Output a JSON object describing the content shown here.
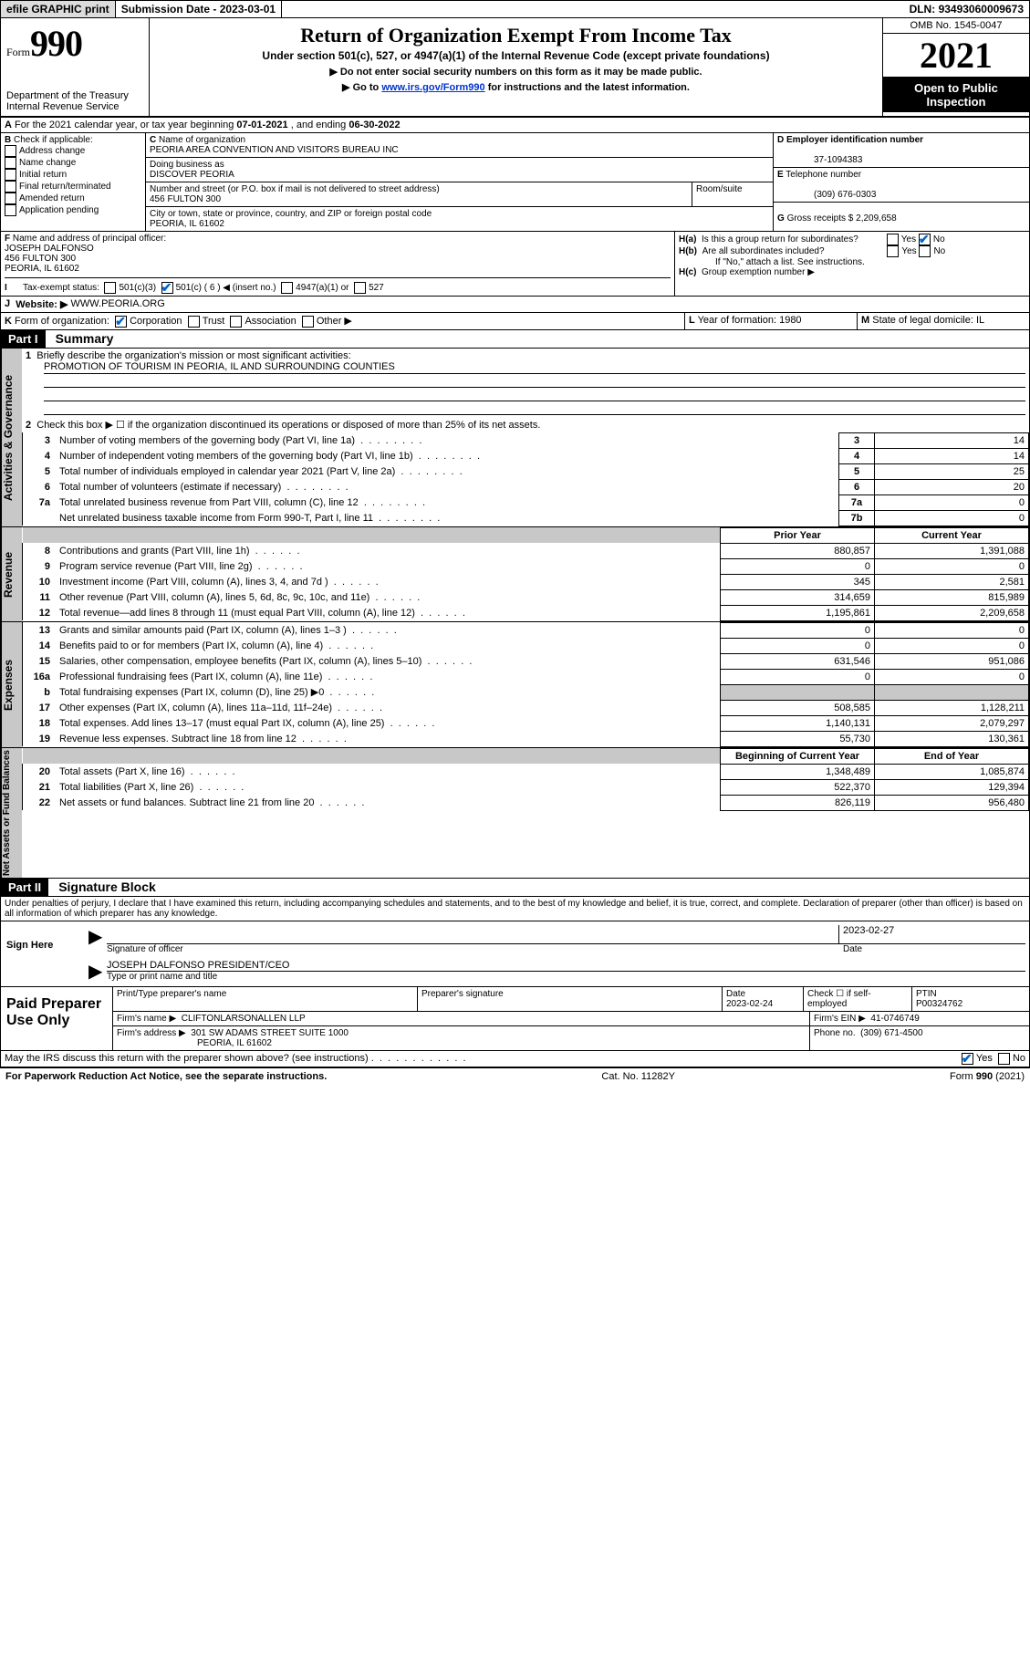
{
  "topbar": {
    "efile": "efile GRAPHIC print",
    "subdate_label": "Submission Date - ",
    "subdate": "2023-03-01",
    "dln_label": "DLN: ",
    "dln": "93493060009673"
  },
  "header": {
    "form_word": "Form",
    "form_no": "990",
    "dept": "Department of the Treasury",
    "irs": "Internal Revenue Service",
    "title": "Return of Organization Exempt From Income Tax",
    "sub": "Under section 501(c), 527, or 4947(a)(1) of the Internal Revenue Code (except private foundations)",
    "note1": "▶ Do not enter social security numbers on this form as it may be made public.",
    "note2_pre": "▶ Go to ",
    "note2_link": "www.irs.gov/Form990",
    "note2_post": " for instructions and the latest information.",
    "omb": "OMB No. 1545-0047",
    "year": "2021",
    "open": "Open to Public Inspection"
  },
  "A": {
    "line": "For the 2021 calendar year, or tax year beginning ",
    "begin": "07-01-2021",
    "mid": " , and ending ",
    "end": "06-30-2022"
  },
  "B": {
    "label": "Check if applicable:",
    "items": [
      "Address change",
      "Name change",
      "Initial return",
      "Final return/terminated",
      "Amended return",
      "Application pending"
    ]
  },
  "C": {
    "name_label": "Name of organization",
    "name": "PEORIA AREA CONVENTION AND VISITORS BUREAU INC",
    "dba_label": "Doing business as",
    "dba": "DISCOVER PEORIA",
    "street_label": "Number and street (or P.O. box if mail is not delivered to street address)",
    "room_label": "Room/suite",
    "street": "456 FULTON 300",
    "city_label": "City or town, state or province, country, and ZIP or foreign postal code",
    "city": "PEORIA, IL  61602"
  },
  "D": {
    "label": "Employer identification number",
    "val": "37-1094383"
  },
  "E": {
    "label": "Telephone number",
    "val": "(309) 676-0303"
  },
  "G": {
    "label": "Gross receipts $",
    "val": "2,209,658"
  },
  "F": {
    "label": "Name and address of principal officer:",
    "name": "JOSEPH DALFONSO",
    "street": "456 FULTON 300",
    "city": "PEORIA, IL  61602"
  },
  "H": {
    "a": "Is this a group return for subordinates?",
    "b": "Are all subordinates included?",
    "bnote": "If \"No,\" attach a list. See instructions.",
    "c": "Group exemption number ▶"
  },
  "I": {
    "label": "Tax-exempt status:",
    "opts": [
      "501(c)(3)",
      "501(c) ( 6 ) ◀ (insert no.)",
      "4947(a)(1) or",
      "527"
    ]
  },
  "J": {
    "label": "Website: ▶",
    "val": "WWW.PEORIA.ORG"
  },
  "K": {
    "label": "Form of organization:",
    "opts": [
      "Corporation",
      "Trust",
      "Association",
      "Other ▶"
    ]
  },
  "L": {
    "label": "Year of formation:",
    "val": "1980"
  },
  "M": {
    "label": "State of legal domicile:",
    "val": "IL"
  },
  "part1": {
    "head": "Part I",
    "title": "Summary",
    "q1": "Briefly describe the organization's mission or most significant activities:",
    "q1a": "PROMOTION OF TOURISM IN PEORIA, IL AND SURROUNDING COUNTIES",
    "q2": "Check this box ▶ ☐ if the organization discontinued its operations or disposed of more than 25% of its net assets.",
    "rows_act": [
      {
        "n": "3",
        "d": "Number of voting members of the governing body (Part VI, line 1a)",
        "box": "3",
        "v": "14"
      },
      {
        "n": "4",
        "d": "Number of independent voting members of the governing body (Part VI, line 1b)",
        "box": "4",
        "v": "14"
      },
      {
        "n": "5",
        "d": "Total number of individuals employed in calendar year 2021 (Part V, line 2a)",
        "box": "5",
        "v": "25"
      },
      {
        "n": "6",
        "d": "Total number of volunteers (estimate if necessary)",
        "box": "6",
        "v": "20"
      },
      {
        "n": "7a",
        "d": "Total unrelated business revenue from Part VIII, column (C), line 12",
        "box": "7a",
        "v": "0"
      },
      {
        "n": "",
        "d": "Net unrelated business taxable income from Form 990-T, Part I, line 11",
        "box": "7b",
        "v": "0"
      }
    ],
    "col_prior": "Prior Year",
    "col_curr": "Current Year",
    "rows_rev": [
      {
        "n": "8",
        "d": "Contributions and grants (Part VIII, line 1h)",
        "p": "880,857",
        "c": "1,391,088"
      },
      {
        "n": "9",
        "d": "Program service revenue (Part VIII, line 2g)",
        "p": "0",
        "c": "0"
      },
      {
        "n": "10",
        "d": "Investment income (Part VIII, column (A), lines 3, 4, and 7d )",
        "p": "345",
        "c": "2,581"
      },
      {
        "n": "11",
        "d": "Other revenue (Part VIII, column (A), lines 5, 6d, 8c, 9c, 10c, and 11e)",
        "p": "314,659",
        "c": "815,989"
      },
      {
        "n": "12",
        "d": "Total revenue—add lines 8 through 11 (must equal Part VIII, column (A), line 12)",
        "p": "1,195,861",
        "c": "2,209,658"
      }
    ],
    "rows_exp": [
      {
        "n": "13",
        "d": "Grants and similar amounts paid (Part IX, column (A), lines 1–3 )",
        "p": "0",
        "c": "0"
      },
      {
        "n": "14",
        "d": "Benefits paid to or for members (Part IX, column (A), line 4)",
        "p": "0",
        "c": "0"
      },
      {
        "n": "15",
        "d": "Salaries, other compensation, employee benefits (Part IX, column (A), lines 5–10)",
        "p": "631,546",
        "c": "951,086"
      },
      {
        "n": "16a",
        "d": "Professional fundraising fees (Part IX, column (A), line 11e)",
        "p": "0",
        "c": "0"
      },
      {
        "n": "b",
        "d": "Total fundraising expenses (Part IX, column (D), line 25) ▶0",
        "p": "",
        "c": "",
        "gray": true
      },
      {
        "n": "17",
        "d": "Other expenses (Part IX, column (A), lines 11a–11d, 11f–24e)",
        "p": "508,585",
        "c": "1,128,211"
      },
      {
        "n": "18",
        "d": "Total expenses. Add lines 13–17 (must equal Part IX, column (A), line 25)",
        "p": "1,140,131",
        "c": "2,079,297"
      },
      {
        "n": "19",
        "d": "Revenue less expenses. Subtract line 18 from line 12",
        "p": "55,730",
        "c": "130,361"
      }
    ],
    "col_begin": "Beginning of Current Year",
    "col_end": "End of Year",
    "rows_net": [
      {
        "n": "20",
        "d": "Total assets (Part X, line 16)",
        "p": "1,348,489",
        "c": "1,085,874"
      },
      {
        "n": "21",
        "d": "Total liabilities (Part X, line 26)",
        "p": "522,370",
        "c": "129,394"
      },
      {
        "n": "22",
        "d": "Net assets or fund balances. Subtract line 21 from line 20",
        "p": "826,119",
        "c": "956,480"
      }
    ],
    "tabs": [
      "Activities & Governance",
      "Revenue",
      "Expenses",
      "Net Assets or Fund Balances"
    ]
  },
  "part2": {
    "head": "Part II",
    "title": "Signature Block",
    "decl": "Under penalties of perjury, I declare that I have examined this return, including accompanying schedules and statements, and to the best of my knowledge and belief, it is true, correct, and complete. Declaration of preparer (other than officer) is based on all information of which preparer has any knowledge.",
    "sign_here": "Sign Here",
    "sig_officer": "Signature of officer",
    "sig_date": "Date",
    "sig_date_val": "2023-02-27",
    "sig_name": "JOSEPH DALFONSO  PRESIDENT/CEO",
    "sig_type": "Type or print name and title",
    "paid": "Paid Preparer Use Only",
    "p_name_label": "Print/Type preparer's name",
    "p_sig_label": "Preparer's signature",
    "p_date_label": "Date",
    "p_date": "2023-02-24",
    "p_check": "Check ☐ if self-employed",
    "p_ptin_label": "PTIN",
    "p_ptin": "P00324762",
    "firm_name_label": "Firm's name    ▶",
    "firm_name": "CLIFTONLARSONALLEN LLP",
    "firm_ein_label": "Firm's EIN ▶",
    "firm_ein": "41-0746749",
    "firm_addr_label": "Firm's address ▶",
    "firm_addr1": "301 SW ADAMS STREET SUITE 1000",
    "firm_addr2": "PEORIA, IL  61602",
    "phone_label": "Phone no.",
    "phone": "(309) 671-4500",
    "discuss": "May the IRS discuss this return with the preparer shown above? (see instructions)"
  },
  "footer": {
    "left": "For Paperwork Reduction Act Notice, see the separate instructions.",
    "mid": "Cat. No. 11282Y",
    "right": "Form 990 (2021)"
  }
}
